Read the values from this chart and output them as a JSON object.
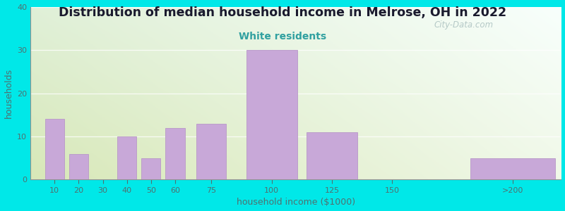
{
  "title": "Distribution of median household income in Melrose, OH in 2022",
  "subtitle": "White residents",
  "xlabel": "household income ($1000)",
  "ylabel": "households",
  "categories": [
    "10",
    "20",
    "30",
    "40",
    "50",
    "60",
    "75",
    "100",
    "125",
    "150",
    ">200"
  ],
  "values": [
    14,
    6,
    0,
    10,
    5,
    12,
    13,
    30,
    11,
    0,
    5
  ],
  "bar_color": "#c8a8d8",
  "bar_edgecolor": "#b898c8",
  "background_color": "#00e8e8",
  "plot_bg_color_topleft": "#e8f5e0",
  "plot_bg_color_topright": "#f0f8ff",
  "plot_bg_color_bottom": "#d0e8b0",
  "ylim": [
    0,
    40
  ],
  "yticks": [
    0,
    10,
    20,
    30,
    40
  ],
  "title_fontsize": 12.5,
  "title_color": "#1a1a2e",
  "subtitle_color": "#30a0a0",
  "subtitle_fontsize": 10,
  "axis_label_color": "#507070",
  "tick_color": "#507070",
  "watermark": "City-Data.com",
  "x_tick_positions": [
    10,
    20,
    30,
    40,
    50,
    60,
    75,
    100,
    125,
    150,
    200
  ],
  "x_bar_centers": [
    10,
    20,
    30,
    40,
    50,
    60,
    75,
    100,
    125,
    150,
    200
  ],
  "x_bar_widths": [
    9,
    9,
    9,
    9,
    9,
    9,
    14,
    24,
    24,
    24,
    40
  ],
  "xlim": [
    0,
    220
  ]
}
